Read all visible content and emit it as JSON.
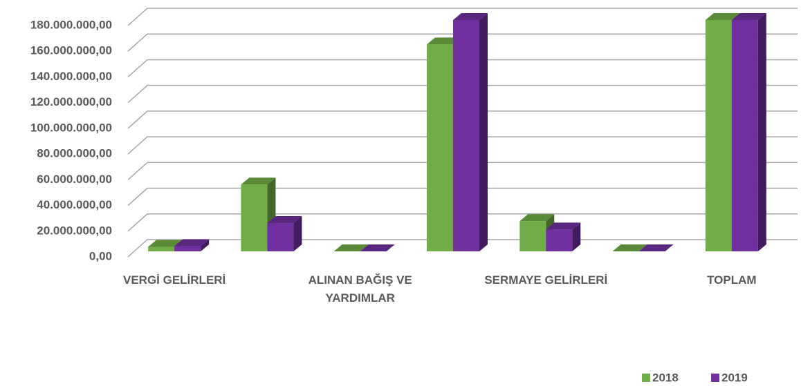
{
  "chart_data": {
    "type": "bar3d",
    "categories": [
      "VERGİ GELİRLERİ",
      null,
      "ALINAN BAĞIŞ VE YARDIMLAR",
      null,
      "SERMAYE GELİRLERİ",
      null,
      "TOPLAM"
    ],
    "series": [
      {
        "name": "2018",
        "color": "#70ad47",
        "values": [
          3500000,
          52000000,
          0,
          161000000,
          23500000,
          0,
          180000000
        ]
      },
      {
        "name": "2019",
        "color": "#7030a0",
        "values": [
          4000000,
          22000000,
          0,
          180000000,
          17000000,
          0,
          180000000
        ]
      }
    ],
    "ylim": [
      0,
      180000000
    ],
    "yticks": [
      {
        "value": 0,
        "label": "0,00"
      },
      {
        "value": 20000000,
        "label": "20.000.000,00"
      },
      {
        "value": 40000000,
        "label": "40.000.000,00"
      },
      {
        "value": 60000000,
        "label": "60.000.000,00"
      },
      {
        "value": 80000000,
        "label": "80.000.000,00"
      },
      {
        "value": 100000000,
        "label": "100.000.000,00"
      },
      {
        "value": 120000000,
        "label": "120.000.000,00"
      },
      {
        "value": 140000000,
        "label": "140.000.000,00"
      },
      {
        "value": 160000000,
        "label": "160.000.000,00"
      },
      {
        "value": 180000000,
        "label": "180.000.000,00"
      }
    ],
    "grid": true,
    "legend": "bottom-right"
  }
}
